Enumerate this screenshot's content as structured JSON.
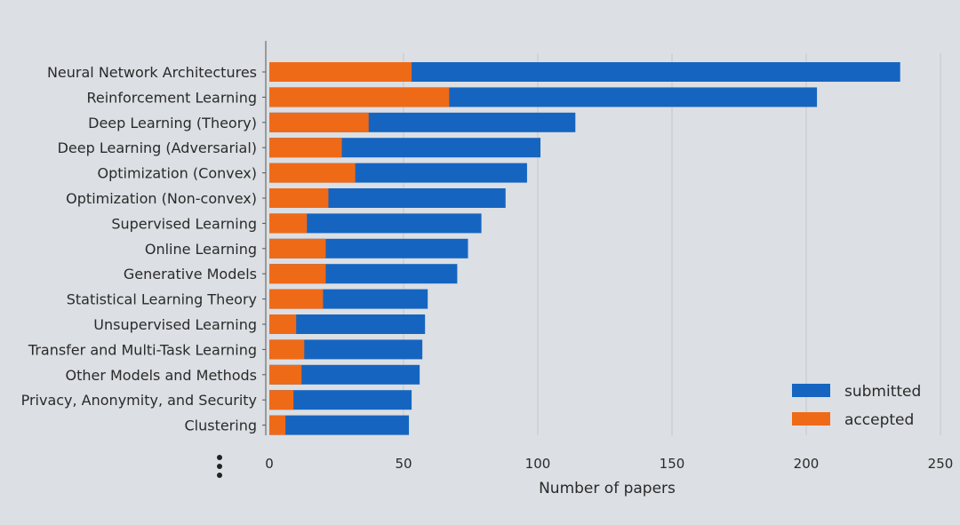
{
  "chart_data": {
    "type": "bar",
    "orientation": "horizontal",
    "stacked": "overlay",
    "categories": [
      "Neural Network Architectures",
      "Reinforcement Learning",
      "Deep Learning (Theory)",
      "Deep Learning (Adversarial)",
      "Optimization (Convex)",
      "Optimization (Non-convex)",
      "Supervised Learning",
      "Online Learning",
      "Generative Models",
      "Statistical Learning Theory",
      "Unsupervised Learning",
      "Transfer and Multi-Task Learning",
      "Other Models and Methods",
      "Privacy, Anonymity, and Security",
      "Clustering"
    ],
    "series": [
      {
        "name": "submitted",
        "color": "#1565c0",
        "values": [
          235,
          204,
          114,
          101,
          96,
          88,
          79,
          74,
          70,
          59,
          58,
          57,
          56,
          53,
          52
        ]
      },
      {
        "name": "accepted",
        "color": "#ef6a17",
        "values": [
          53,
          67,
          37,
          27,
          32,
          22,
          14,
          21,
          21,
          20,
          10,
          13,
          12,
          9,
          6
        ]
      }
    ],
    "xlabel": "Number of papers",
    "ylabel": "",
    "xlim": [
      0,
      250
    ],
    "xticks": [
      0,
      50,
      100,
      150,
      200,
      250
    ],
    "grid": "vertical",
    "legend_position": "bottom-right"
  }
}
